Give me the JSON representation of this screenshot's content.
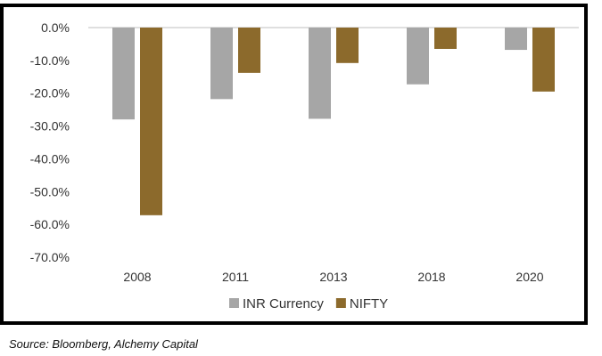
{
  "chart_data": {
    "type": "bar",
    "categories": [
      "2008",
      "2011",
      "2013",
      "2018",
      "2020"
    ],
    "series": [
      {
        "name": "INR Currency",
        "values": [
          -28.0,
          -21.8,
          -27.8,
          -17.3,
          -6.8
        ],
        "color": "#a6a6a6"
      },
      {
        "name": "NIFTY",
        "values": [
          -57.2,
          -13.8,
          -10.8,
          -6.5,
          -19.5
        ],
        "color": "#8c6a2c"
      }
    ],
    "ylim": [
      -70,
      0
    ],
    "yticks": [
      "0.0%",
      "-10.0%",
      "-20.0%",
      "-30.0%",
      "-40.0%",
      "-50.0%",
      "-60.0%",
      "-70.0%"
    ],
    "grid": false,
    "legend": "bottom-center"
  },
  "source": "Source: Bloomberg, Alchemy Capital"
}
